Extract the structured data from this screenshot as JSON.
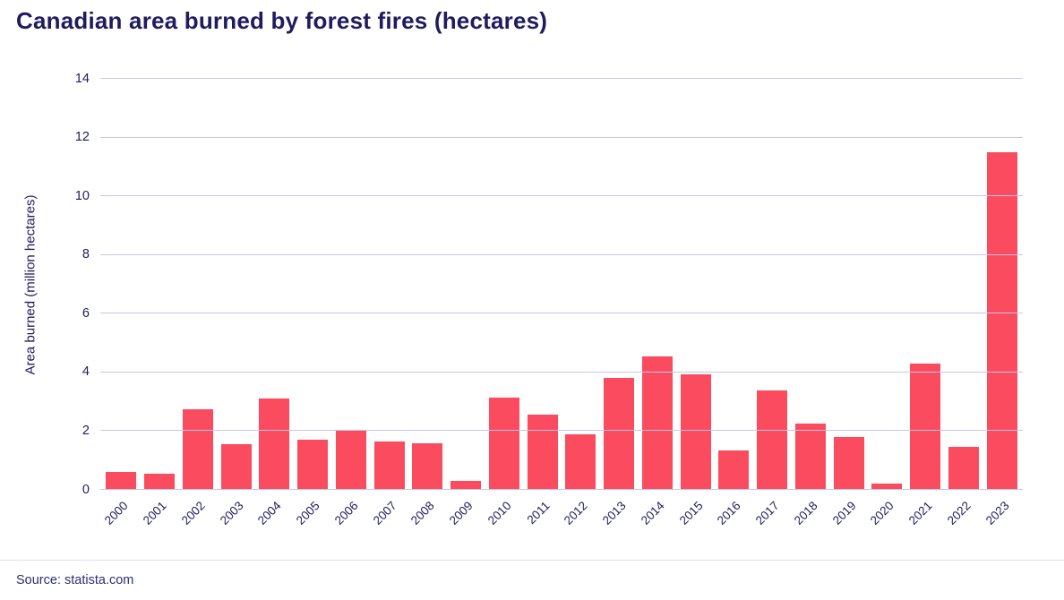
{
  "title": "Canadian area burned by forest fires (hectares)",
  "source": "Source: statista.com",
  "colors": {
    "bar": "#fa4b5f",
    "grid": "#c9c6e4",
    "text": "#1f1b5e"
  },
  "chart_data": {
    "type": "bar",
    "title": "Canadian area burned by forest fires (hectares)",
    "xlabel": "",
    "ylabel": "Area burned (million hectares)",
    "ylim": [
      0,
      14
    ],
    "yticks": [
      0,
      2,
      4,
      6,
      8,
      10,
      12,
      14
    ],
    "grid": "horizontal",
    "legend": "none",
    "categories": [
      "2000",
      "2001",
      "2002",
      "2003",
      "2004",
      "2005",
      "2006",
      "2007",
      "2008",
      "2009",
      "2010",
      "2011",
      "2012",
      "2013",
      "2014",
      "2015",
      "2016",
      "2017",
      "2018",
      "2019",
      "2020",
      "2021",
      "2022",
      "2023"
    ],
    "values": [
      0.6,
      0.55,
      2.75,
      1.55,
      3.1,
      1.7,
      2.0,
      1.65,
      1.6,
      0.3,
      3.15,
      2.55,
      1.9,
      3.8,
      4.55,
      3.95,
      1.35,
      3.4,
      2.25,
      1.8,
      0.2,
      4.3,
      1.45,
      11.5
    ]
  }
}
